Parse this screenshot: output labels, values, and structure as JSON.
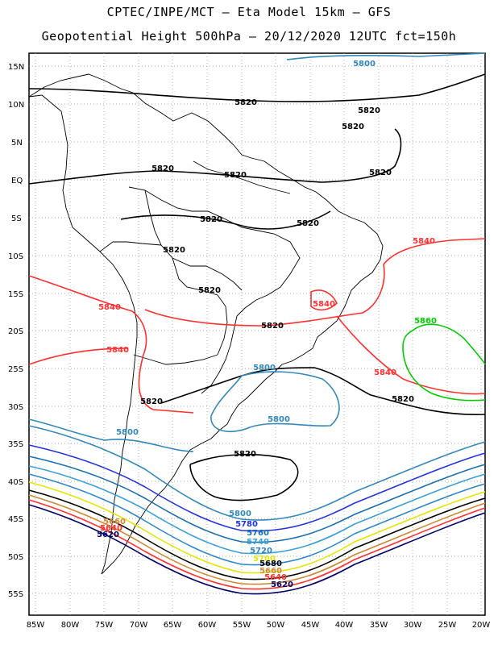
{
  "header": {
    "line1": "CPTEC/INPE/MCT –  Eta Model 15km – GFS",
    "line2": "Geopotential Height 500hPa – 20/12/2020 12UTC fct=150h"
  },
  "axes": {
    "lat_labels": [
      "15N",
      "10N",
      "5N",
      "EQ",
      "5S",
      "10S",
      "15S",
      "20S",
      "25S",
      "30S",
      "35S",
      "40S",
      "45S",
      "50S",
      "55S"
    ],
    "lon_labels": [
      "85W",
      "80W",
      "75W",
      "70W",
      "65W",
      "60W",
      "55W",
      "50W",
      "45W",
      "40W",
      "35W",
      "30W",
      "25W",
      "20W"
    ]
  },
  "grid": "dotted",
  "contour_colors": {
    "5820": "#000000",
    "5840": "#ff3030",
    "5860": "#00cc00",
    "5800": "#3388bb",
    "5780": "#2233dd",
    "5760": "#1a6fb0",
    "5740": "#3aa0d8",
    "5720": "#2e86c8",
    "5700": "#e6e600",
    "5680": "#000000",
    "5660": "#cc8833",
    "5640": "#ff3030",
    "5620": "#000066"
  },
  "contour_labels": [
    {
      "text": "5800",
      "color": "#3388bb"
    },
    {
      "text": "5820",
      "color": "#000000"
    },
    {
      "text": "5820",
      "color": "#000000"
    },
    {
      "text": "5820",
      "color": "#000000"
    },
    {
      "text": "5820",
      "color": "#000000"
    },
    {
      "text": "5820",
      "color": "#000000"
    },
    {
      "text": "5820",
      "color": "#000000"
    },
    {
      "text": "5820",
      "color": "#000000"
    },
    {
      "text": "5820",
      "color": "#000000"
    },
    {
      "text": "5820",
      "color": "#000000"
    },
    {
      "text": "5840",
      "color": "#ff3030"
    },
    {
      "text": "5820",
      "color": "#000000"
    },
    {
      "text": "5840",
      "color": "#ff3030"
    },
    {
      "text": "5840",
      "color": "#ff3030"
    },
    {
      "text": "5860",
      "color": "#00cc00"
    },
    {
      "text": "5820",
      "color": "#000000"
    },
    {
      "text": "5840",
      "color": "#ff3030"
    },
    {
      "text": "5840",
      "color": "#ff3030"
    },
    {
      "text": "5800",
      "color": "#3388bb"
    },
    {
      "text": "5820",
      "color": "#000000"
    },
    {
      "text": "5820",
      "color": "#000000"
    },
    {
      "text": "5800",
      "color": "#3388bb"
    },
    {
      "text": "5800",
      "color": "#3388bb"
    },
    {
      "text": "5820",
      "color": "#000000"
    },
    {
      "text": "5800",
      "color": "#3388bb"
    },
    {
      "text": "5780",
      "color": "#2233dd"
    },
    {
      "text": "5760",
      "color": "#1a6fb0"
    },
    {
      "text": "5740",
      "color": "#3aa0d8"
    },
    {
      "text": "5720",
      "color": "#2e86c8"
    },
    {
      "text": "5700",
      "color": "#e6e600"
    },
    {
      "text": "5680",
      "color": "#000000"
    },
    {
      "text": "5660",
      "color": "#cc8833"
    },
    {
      "text": "5640",
      "color": "#ff3030"
    },
    {
      "text": "5620",
      "color": "#000066"
    },
    {
      "text": "5660",
      "color": "#cc8833"
    },
    {
      "text": "5640",
      "color": "#ff3030"
    },
    {
      "text": "5620",
      "color": "#000066"
    }
  ]
}
